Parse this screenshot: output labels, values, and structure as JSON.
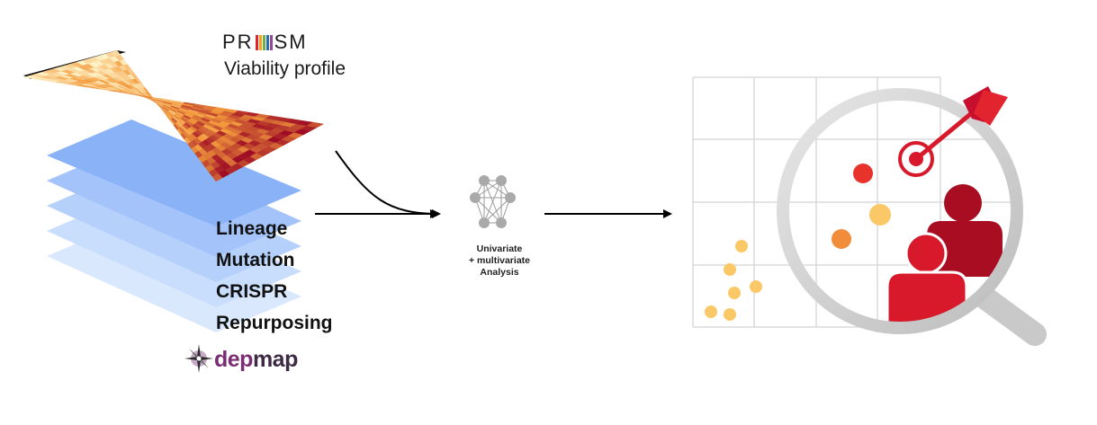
{
  "prism": {
    "logo_text_left": "PR",
    "logo_text_right": "SM",
    "logo_bar_colors": [
      "#e4242b",
      "#f4a11d",
      "#6ab04c",
      "#2f6db3",
      "#8e4a9c"
    ],
    "subtitle": "Viability profile"
  },
  "layers": [
    "Lineage",
    "Mutation",
    "CRISPR",
    "Repurposing"
  ],
  "depmap": {
    "part1": "dep",
    "part2": "map"
  },
  "analysis": {
    "line1": "Univariate",
    "line2": "+ multivariate",
    "line3": "Analysis"
  },
  "colors": {
    "heat_low": "#fff3c8",
    "heat_mid": "#f39a3c",
    "heat_high": "#9e0c25",
    "layer_blue": "#8ab3f7",
    "accent_red": "#d8192b",
    "dot_yellow": "#fbc868",
    "dot_orange": "#f08c3a"
  }
}
